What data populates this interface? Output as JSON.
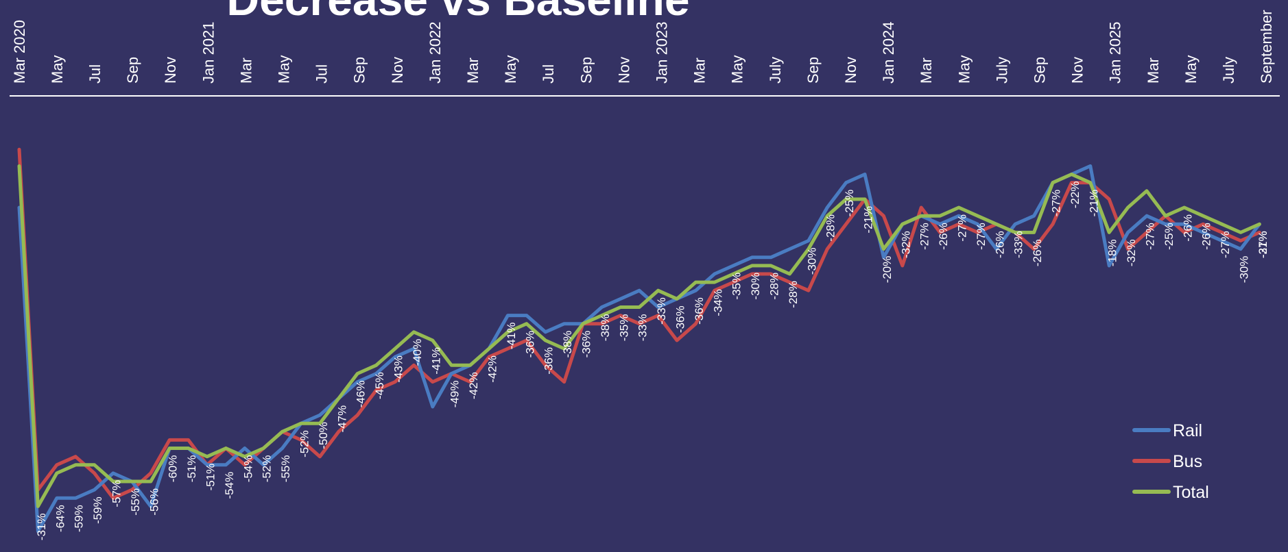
{
  "colors": {
    "background": "#343263",
    "rail": "#4a7cc2",
    "bus": "#c8494b",
    "total": "#96bb53",
    "axis": "#ffffff"
  },
  "chart_data": {
    "type": "line",
    "title": "Decrease vs Baseline",
    "xlabel": "",
    "ylabel": "",
    "ylim": [
      -66,
      0
    ],
    "grid": false,
    "legend_position": "bottom-right",
    "tick_labels": [
      "Mar 2020",
      "May",
      "Jul",
      "Sep",
      "Nov",
      "Jan 2021",
      "Mar",
      "May",
      "Jul",
      "Sep",
      "Nov",
      "Jan 2022",
      "Mar",
      "May",
      "Jul",
      "Sep",
      "Nov",
      "Jan 2023",
      "Mar",
      "May",
      "July",
      "Sep",
      "Nov",
      "Jan 2024",
      "Mar",
      "May",
      "July",
      "Sep",
      "Nov",
      "Jan 2025",
      "Mar",
      "May",
      "July",
      "September"
    ],
    "series": [
      {
        "name": "Rail",
        "values": [
          -25,
          -64,
          -60,
          -60,
          -59,
          -57,
          -58,
          -61,
          -54,
          -54,
          -56,
          -56,
          -54,
          -56,
          -54,
          -51,
          -50,
          -48,
          -46,
          -45,
          -43,
          -42,
          -49,
          -45,
          -44,
          -42,
          -38,
          -38,
          -40,
          -39,
          -39,
          -37,
          -36,
          -35,
          -37,
          -36,
          -35,
          -33,
          -32,
          -31,
          -31,
          -30,
          -29,
          -25,
          -22,
          -21,
          -31,
          -27,
          -26,
          -27,
          -26,
          -27,
          -30,
          -27,
          -26,
          -22,
          -21,
          -20,
          -32,
          -28,
          -26,
          -27,
          -27,
          -28,
          -29,
          -30,
          -27
        ]
      },
      {
        "name": "Bus",
        "values": [
          -18,
          -59,
          -56,
          -55,
          -57,
          -60,
          -59,
          -57,
          -53,
          -53,
          -56,
          -54,
          -56,
          -54,
          -52,
          -53,
          -55,
          -52,
          -50,
          -47,
          -46,
          -44,
          -46,
          -45,
          -46,
          -43,
          -42,
          -41,
          -44,
          -46,
          -39,
          -39,
          -38,
          -39,
          -38,
          -41,
          -39,
          -35,
          -34,
          -33,
          -33,
          -34,
          -35,
          -30,
          -27,
          -24,
          -26,
          -32,
          -25,
          -28,
          -27,
          -28,
          -27,
          -28,
          -30,
          -27,
          -22,
          -22,
          -24,
          -30,
          -28,
          -26,
          -28,
          -27,
          -28,
          -29,
          -28
        ]
      },
      {
        "name": "Total",
        "values": [
          -20,
          -61,
          -57,
          -56,
          -56,
          -58,
          -58,
          -58,
          -54,
          -54,
          -55,
          -54,
          -55,
          -54,
          -52,
          -51,
          -51,
          -48,
          -45,
          -44,
          -42,
          -40,
          -41,
          -44,
          -44,
          -42,
          -40,
          -39,
          -41,
          -42,
          -39,
          -38,
          -37,
          -37,
          -35,
          -36,
          -34,
          -34,
          -33,
          -32,
          -32,
          -33,
          -30,
          -26,
          -24,
          -24,
          -30,
          -27,
          -26,
          -26,
          -25,
          -26,
          -27,
          -28,
          -28,
          -22,
          -21,
          -22,
          -28,
          -25,
          -23,
          -26,
          -25,
          -26,
          -27,
          -28,
          -27
        ]
      }
    ],
    "data_labels": [
      {
        "text": "-31%",
        "index": 1,
        "series": "Total"
      },
      {
        "text": "-64%",
        "index": 2,
        "series": "Rail"
      },
      {
        "text": "-59%",
        "index": 3,
        "series": "Rail"
      },
      {
        "text": "-59%",
        "index": 4,
        "series": "Rail"
      },
      {
        "text": "-57%",
        "index": 5,
        "series": "Rail"
      },
      {
        "text": "-55%",
        "index": 6,
        "series": "Total"
      },
      {
        "text": "-56%",
        "index": 7,
        "series": "Total"
      },
      {
        "text": "-60%",
        "index": 8,
        "series": "Rail"
      },
      {
        "text": "-51%",
        "index": 9,
        "series": "Total"
      },
      {
        "text": "-51%",
        "index": 10,
        "series": "Total"
      },
      {
        "text": "-54%",
        "index": 11,
        "series": "Rail"
      },
      {
        "text": "-54%",
        "index": 12,
        "series": "Rail"
      },
      {
        "text": "-52%",
        "index": 13,
        "series": "Total"
      },
      {
        "text": "-55%",
        "index": 14,
        "series": "Rail"
      },
      {
        "text": "-52%",
        "index": 15,
        "series": "Rail"
      },
      {
        "text": "-50%",
        "index": 16,
        "series": "Rail"
      },
      {
        "text": "-47%",
        "index": 17,
        "series": "Total"
      },
      {
        "text": "-46%",
        "index": 18,
        "series": "Total"
      },
      {
        "text": "-45%",
        "index": 19,
        "series": "Total"
      },
      {
        "text": "-43%",
        "index": 20,
        "series": "Total"
      },
      {
        "text": "-40%",
        "index": 21,
        "series": "Total"
      },
      {
        "text": "-41%",
        "index": 22,
        "series": "Total"
      },
      {
        "text": "-49%",
        "index": 23,
        "series": "Rail"
      },
      {
        "text": "-42%",
        "index": 24,
        "series": "Total"
      },
      {
        "text": "-42%",
        "index": 25,
        "series": "Total"
      },
      {
        "text": "-41%",
        "index": 26,
        "series": "Rail"
      },
      {
        "text": "-36%",
        "index": 27,
        "series": "Total"
      },
      {
        "text": "-36%",
        "index": 28,
        "series": "Total"
      },
      {
        "text": "-38%",
        "index": 29,
        "series": "Rail"
      },
      {
        "text": "-36%",
        "index": 30,
        "series": "Total"
      },
      {
        "text": "-38%",
        "index": 31,
        "series": "Rail"
      },
      {
        "text": "-35%",
        "index": 32,
        "series": "Total"
      },
      {
        "text": "-33%",
        "index": 33,
        "series": "Total"
      },
      {
        "text": "-33%",
        "index": 34,
        "series": "Total"
      },
      {
        "text": "-36%",
        "index": 35,
        "series": "Total"
      },
      {
        "text": "-36%",
        "index": 36,
        "series": "Rail"
      },
      {
        "text": "-34%",
        "index": 37,
        "series": "Total"
      },
      {
        "text": "-35%",
        "index": 38,
        "series": "Rail"
      },
      {
        "text": "-30%",
        "index": 39,
        "series": "Total"
      },
      {
        "text": "-28%",
        "index": 40,
        "series": "Total"
      },
      {
        "text": "-28%",
        "index": 41,
        "series": "Total"
      },
      {
        "text": "-30%",
        "index": 42,
        "series": "Rail"
      },
      {
        "text": "-28%",
        "index": 43,
        "series": "Rail"
      },
      {
        "text": "-25%",
        "index": 44,
        "series": "Rail"
      },
      {
        "text": "-21%",
        "index": 45,
        "series": "Total"
      },
      {
        "text": "-20%",
        "index": 46,
        "series": "Total"
      },
      {
        "text": "-32%",
        "index": 47,
        "series": "Rail"
      },
      {
        "text": "-27%",
        "index": 48,
        "series": "Total"
      },
      {
        "text": "-26%",
        "index": 49,
        "series": "Total"
      },
      {
        "text": "-27%",
        "index": 50,
        "series": "Total"
      },
      {
        "text": "-27%",
        "index": 51,
        "series": "Total"
      },
      {
        "text": "-26%",
        "index": 52,
        "series": "Total"
      },
      {
        "text": "-33%",
        "index": 53,
        "series": "Rail"
      },
      {
        "text": "-26%",
        "index": 54,
        "series": "Total"
      },
      {
        "text": "-27%",
        "index": 55,
        "series": "Rail"
      },
      {
        "text": "-22%",
        "index": 56,
        "series": "Total"
      },
      {
        "text": "-21%",
        "index": 57,
        "series": "Total"
      },
      {
        "text": "-18%",
        "index": 58,
        "series": "Total"
      },
      {
        "text": "-32%",
        "index": 59,
        "series": "Rail"
      },
      {
        "text": "-27%",
        "index": 60,
        "series": "Rail"
      },
      {
        "text": "-25%",
        "index": 61,
        "series": "Total"
      },
      {
        "text": "-26%",
        "index": 62,
        "series": "Total"
      },
      {
        "text": "-26%",
        "index": 63,
        "series": "Total"
      },
      {
        "text": "-27%",
        "index": 64,
        "series": "Total"
      },
      {
        "text": "-30%",
        "index": 65,
        "series": "Rail"
      },
      {
        "text": "-31%",
        "index": 66,
        "series": "Rail"
      },
      {
        "text": "-27%",
        "index": 67,
        "series": "Total"
      }
    ]
  }
}
